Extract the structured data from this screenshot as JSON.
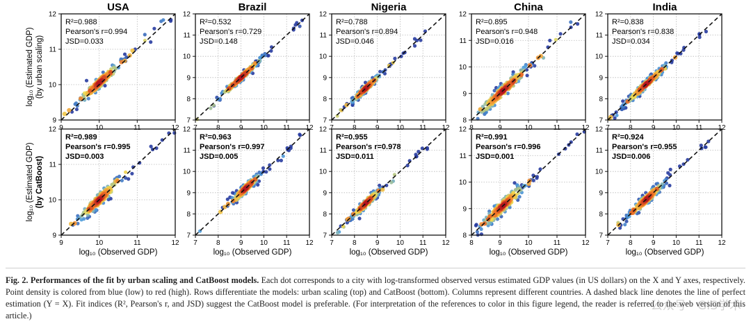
{
  "figure": {
    "x_label": "log₁₀ (Observed GDP)",
    "row_labels": [
      {
        "line1": "log₁₀ (Estimated GDP)",
        "line2": "(by urban scaling)",
        "bold": false
      },
      {
        "line1": "log₁₀ (Estimated GDP)",
        "line2": "(by CatBoost)",
        "bold": true
      }
    ],
    "stat_labels": {
      "r2": "R²=",
      "pearson": "Pearson's r=",
      "jsd": "JSD="
    }
  },
  "chart_data": [
    {
      "type": "scatter",
      "title": "USA",
      "model": "urban scaling",
      "xlim": [
        9,
        12
      ],
      "ylim": [
        9,
        12
      ],
      "xticks": [
        9,
        10,
        11,
        12
      ],
      "yticks": [
        9,
        10,
        11,
        12
      ],
      "r2": "0.988",
      "pearson": "0.994",
      "jsd": "0.033",
      "center": [
        10.0,
        10.05
      ],
      "spread": [
        0.35,
        0.3
      ],
      "bold_stats": false
    },
    {
      "type": "scatter",
      "title": "Brazil",
      "model": "urban scaling",
      "xlim": [
        7,
        12
      ],
      "ylim": [
        7,
        12
      ],
      "xticks": [
        7,
        8,
        9,
        10,
        11,
        12
      ],
      "yticks": [
        7,
        8,
        9,
        10,
        11,
        12
      ],
      "r2": "0.532",
      "pearson": "0.729",
      "jsd": "0.148",
      "center": [
        9.0,
        9.0
      ],
      "spread": [
        0.6,
        0.3
      ],
      "bold_stats": false
    },
    {
      "type": "scatter",
      "title": "Nigeria",
      "model": "urban scaling",
      "xlim": [
        7,
        12
      ],
      "ylim": [
        7,
        12
      ],
      "xticks": [
        7,
        8,
        9,
        10,
        11,
        12
      ],
      "yticks": [
        7,
        8,
        9,
        10,
        11,
        12
      ],
      "r2": "0.788",
      "pearson": "0.894",
      "jsd": "0.046",
      "center": [
        8.5,
        8.5
      ],
      "spread": [
        0.4,
        0.3
      ],
      "bold_stats": false
    },
    {
      "type": "scatter",
      "title": "China",
      "model": "urban scaling",
      "xlim": [
        8,
        12
      ],
      "ylim": [
        8,
        12
      ],
      "xticks": [
        8,
        9,
        10,
        11,
        12
      ],
      "yticks": [
        8,
        9,
        10,
        11,
        12
      ],
      "r2": "0.895",
      "pearson": "0.948",
      "jsd": "0.016",
      "center": [
        9.1,
        9.1
      ],
      "spread": [
        0.6,
        0.45
      ],
      "bold_stats": false
    },
    {
      "type": "scatter",
      "title": "India",
      "model": "urban scaling",
      "xlim": [
        7,
        12
      ],
      "ylim": [
        7,
        12
      ],
      "xticks": [
        7,
        8,
        9,
        10,
        11,
        12
      ],
      "yticks": [
        7,
        8,
        9,
        10,
        11,
        12
      ],
      "r2": "0.838",
      "pearson": "0.838",
      "jsd": "0.034",
      "center": [
        8.7,
        8.7
      ],
      "spread": [
        0.6,
        0.35
      ],
      "bold_stats": false
    },
    {
      "type": "scatter",
      "title": "",
      "model": "CatBoost",
      "xlim": [
        9,
        12
      ],
      "ylim": [
        9,
        12
      ],
      "xticks": [
        9,
        10,
        11,
        12
      ],
      "yticks": [
        9,
        10,
        11,
        12
      ],
      "r2": "0.989",
      "pearson": "0.995",
      "jsd": "0.003",
      "center": [
        10.0,
        10.0
      ],
      "spread": [
        0.35,
        0.35
      ],
      "bold_stats": true
    },
    {
      "type": "scatter",
      "title": "",
      "model": "CatBoost",
      "xlim": [
        7,
        12
      ],
      "ylim": [
        7,
        12
      ],
      "xticks": [
        7,
        8,
        9,
        10,
        11,
        12
      ],
      "yticks": [
        7,
        8,
        9,
        10,
        11,
        12
      ],
      "r2": "0.963",
      "pearson": "0.997",
      "jsd": "0.005",
      "center": [
        9.2,
        9.2
      ],
      "spread": [
        0.4,
        0.4
      ],
      "bold_stats": true
    },
    {
      "type": "scatter",
      "title": "",
      "model": "CatBoost",
      "xlim": [
        7,
        12
      ],
      "ylim": [
        7,
        12
      ],
      "xticks": [
        7,
        8,
        9,
        10,
        11,
        12
      ],
      "yticks": [
        7,
        8,
        9,
        10,
        11,
        12
      ],
      "r2": "0.955",
      "pearson": "0.978",
      "jsd": "0.011",
      "center": [
        8.5,
        8.5
      ],
      "spread": [
        0.4,
        0.4
      ],
      "bold_stats": true
    },
    {
      "type": "scatter",
      "title": "",
      "model": "CatBoost",
      "xlim": [
        8,
        12
      ],
      "ylim": [
        8,
        12
      ],
      "xticks": [
        8,
        9,
        10,
        11,
        12
      ],
      "yticks": [
        8,
        9,
        10,
        11,
        12
      ],
      "r2": "0.991",
      "pearson": "0.996",
      "jsd": "0.001",
      "center": [
        9.1,
        9.1
      ],
      "spread": [
        0.5,
        0.5
      ],
      "bold_stats": true
    },
    {
      "type": "scatter",
      "title": "",
      "model": "CatBoost",
      "xlim": [
        7,
        12
      ],
      "ylim": [
        7,
        12
      ],
      "xticks": [
        7,
        8,
        9,
        10,
        11,
        12
      ],
      "yticks": [
        7,
        8,
        9,
        10,
        11,
        12
      ],
      "r2": "0.924",
      "pearson": "0.955",
      "jsd": "0.006",
      "center": [
        8.7,
        8.7
      ],
      "spread": [
        0.5,
        0.45
      ],
      "bold_stats": true
    }
  ],
  "caption": {
    "label": "Fig. 2.",
    "title": "Performances of the fit by urban scaling and CatBoost models.",
    "body": " Each dot corresponds to a city with log-transformed observed versus estimated GDP values (in US dollars) on the X and Y axes, respectively. Point density is colored from blue (low) to red (high). Rows differentiate the models: urban scaling (top) and CatBoost (bottom). Columns represent different countries. A dashed black line denotes the line of perfect estimation (Y = X). Fit indices (R², Pearson's r, and JSD) suggest the CatBoost model is preferable. (For interpretation of the references to color in this figure legend, the reader is referred to the web version of this article.)"
  },
  "watermark": "公众号 · GIS学术"
}
